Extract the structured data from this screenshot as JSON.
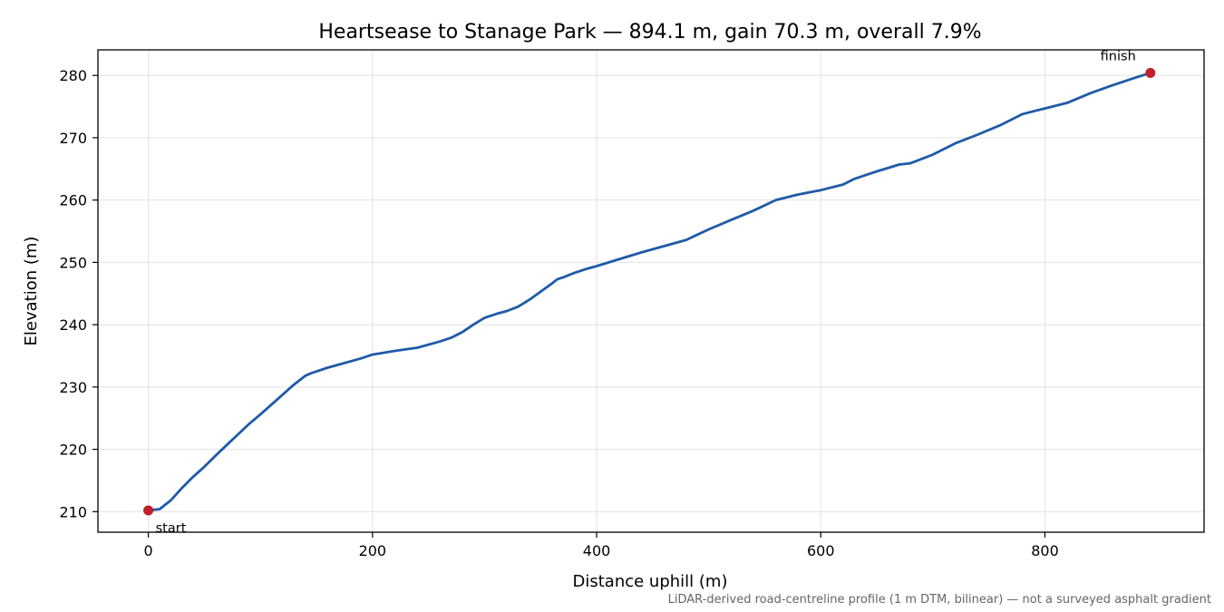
{
  "chart_data": {
    "type": "line",
    "title": "Heartsease to Stanage Park — 894.1 m, gain 70.3 m, overall 7.9%",
    "xlabel": "Distance uphill (m)",
    "ylabel": "Elevation (m)",
    "xlim": [
      -45,
      942
    ],
    "ylim": [
      206.7,
      284.1
    ],
    "xticks": [
      0,
      200,
      400,
      600,
      800
    ],
    "yticks": [
      210,
      220,
      230,
      240,
      250,
      260,
      270,
      280
    ],
    "grid": true,
    "series": [
      {
        "color": "#1f5aa8",
        "x": [
          0,
          10,
          20,
          30,
          40,
          50,
          60,
          70,
          80,
          90,
          100,
          110,
          120,
          130,
          140,
          145,
          150,
          160,
          170,
          180,
          190,
          200,
          220,
          240,
          260,
          270,
          280,
          290,
          300,
          310,
          320,
          330,
          340,
          350,
          360,
          365,
          370,
          380,
          390,
          400,
          420,
          440,
          460,
          480,
          500,
          520,
          540,
          560,
          580,
          600,
          620,
          630,
          650,
          670,
          680,
          700,
          720,
          740,
          760,
          770,
          780,
          800,
          820,
          840,
          860,
          880,
          894.1
        ],
        "y": [
          210.2,
          210.4,
          211.8,
          213.8,
          215.6,
          217.2,
          219.0,
          220.7,
          222.4,
          224.1,
          225.6,
          227.2,
          228.8,
          230.4,
          231.8,
          232.2,
          232.5,
          233.1,
          233.6,
          234.1,
          234.6,
          235.2,
          235.8,
          236.3,
          237.3,
          237.9,
          238.8,
          240.0,
          241.1,
          241.7,
          242.2,
          242.9,
          244.0,
          245.3,
          246.6,
          247.3,
          247.6,
          248.3,
          248.9,
          249.4,
          250.5,
          251.6,
          252.6,
          253.6,
          255.3,
          256.8,
          258.3,
          260.0,
          260.9,
          261.6,
          262.5,
          263.4,
          264.6,
          265.7,
          265.9,
          267.3,
          269.1,
          270.5,
          272.0,
          272.9,
          273.8,
          274.7,
          275.6,
          277.1,
          278.4,
          279.6,
          280.4
        ]
      }
    ],
    "markers": [
      {
        "x": 0,
        "y": 210.2,
        "label": "start",
        "color": "#c1202b"
      },
      {
        "x": 894.1,
        "y": 280.4,
        "label": "finish",
        "color": "#c1202b"
      }
    ],
    "footnote": "LiDAR-derived road-centreline profile (1 m DTM, bilinear) — not a surveyed asphalt gradient"
  }
}
